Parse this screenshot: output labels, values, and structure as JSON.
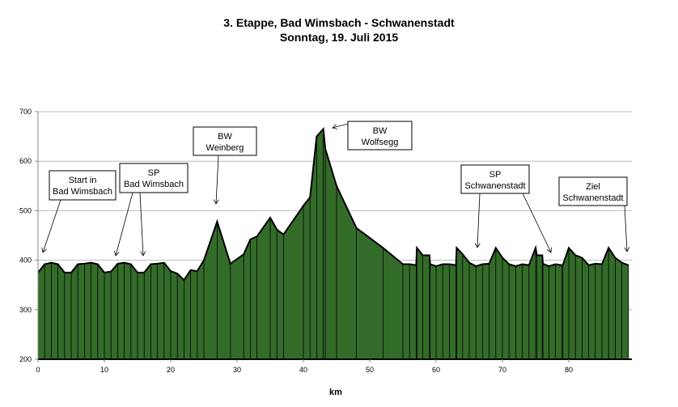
{
  "chart_data": {
    "type": "area",
    "title": "3. Etappe, Bad Wimsbach - Schwanenstadt",
    "subtitle": "Sonntag, 19. Juli 2015",
    "xlabel": "km",
    "ylabel": "",
    "xlim": [
      0,
      89
    ],
    "ylim": [
      200,
      700
    ],
    "x_ticks": [
      "0",
      "10",
      "20",
      "30",
      "40",
      "50",
      "60",
      "70",
      "80"
    ],
    "y_ticks": [
      "200",
      "300",
      "400",
      "500",
      "600",
      "700"
    ],
    "grid": true,
    "fill_color": "#336b29",
    "points": [
      [
        0,
        375
      ],
      [
        1,
        392
      ],
      [
        2,
        395
      ],
      [
        3,
        392
      ],
      [
        4,
        375
      ],
      [
        5,
        375
      ],
      [
        6,
        392
      ],
      [
        7,
        393
      ],
      [
        8,
        395
      ],
      [
        9,
        392
      ],
      [
        10,
        375
      ],
      [
        11,
        377
      ],
      [
        12,
        393
      ],
      [
        13,
        395
      ],
      [
        14,
        392
      ],
      [
        15,
        375
      ],
      [
        16,
        375
      ],
      [
        17,
        392
      ],
      [
        18,
        393
      ],
      [
        19,
        395
      ],
      [
        20,
        378
      ],
      [
        21,
        373
      ],
      [
        22,
        360
      ],
      [
        23,
        380
      ],
      [
        24,
        378
      ],
      [
        25,
        400
      ],
      [
        27,
        478
      ],
      [
        29,
        393
      ],
      [
        31,
        412
      ],
      [
        32,
        442
      ],
      [
        33,
        448
      ],
      [
        35,
        486
      ],
      [
        36,
        462
      ],
      [
        37,
        452
      ],
      [
        40,
        510
      ],
      [
        41,
        527
      ],
      [
        42,
        650
      ],
      [
        43,
        665
      ],
      [
        43.3,
        625
      ],
      [
        45,
        550
      ],
      [
        48,
        465
      ],
      [
        52,
        425
      ],
      [
        55,
        392
      ],
      [
        56,
        392
      ],
      [
        57,
        390
      ],
      [
        57.1,
        425
      ],
      [
        58,
        410
      ],
      [
        59,
        410
      ],
      [
        59.1,
        392
      ],
      [
        60,
        388
      ],
      [
        61,
        392
      ],
      [
        62,
        392
      ],
      [
        63,
        390
      ],
      [
        63.1,
        425
      ],
      [
        64,
        412
      ],
      [
        65,
        395
      ],
      [
        66,
        388
      ],
      [
        67,
        392
      ],
      [
        68,
        393
      ],
      [
        69,
        425
      ],
      [
        70,
        405
      ],
      [
        71,
        392
      ],
      [
        72,
        388
      ],
      [
        73,
        392
      ],
      [
        74,
        390
      ],
      [
        75,
        425
      ],
      [
        75.2,
        410
      ],
      [
        76,
        410
      ],
      [
        76.1,
        393
      ],
      [
        77,
        388
      ],
      [
        78,
        392
      ],
      [
        79,
        390
      ],
      [
        79.1,
        390
      ],
      [
        80,
        425
      ],
      [
        81,
        410
      ],
      [
        82,
        405
      ],
      [
        83,
        390
      ],
      [
        84,
        393
      ],
      [
        85,
        392
      ],
      [
        86,
        425
      ],
      [
        87,
        405
      ],
      [
        88,
        395
      ],
      [
        89,
        390
      ]
    ],
    "annotations": [
      {
        "lines": [
          "Start in",
          "Bad Wimsbach"
        ]
      },
      {
        "lines": [
          "SP",
          "Bad Wimsbach"
        ]
      },
      {
        "lines": [
          "BW",
          "Weinberg"
        ]
      },
      {
        "lines": [
          "BW",
          "Wolfsegg"
        ]
      },
      {
        "lines": [
          "SP",
          "Schwanenstadt"
        ]
      },
      {
        "lines": [
          "Ziel",
          "Schwanenstadt"
        ]
      }
    ]
  }
}
